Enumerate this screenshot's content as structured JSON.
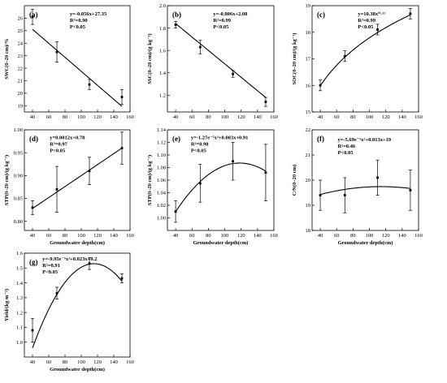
{
  "chart_data": [
    {
      "type": "line",
      "panel": "(a)",
      "x": [
        40,
        70,
        110,
        150
      ],
      "y": [
        26.1,
        23.3,
        20.7,
        19.7
      ],
      "err": [
        0.6,
        0.8,
        0.4,
        0.6
      ],
      "fit": {
        "kind": "poly",
        "coef": [
          27.35,
          -0.056,
          0
        ],
        "label": "y=-0.056x+27.35"
      },
      "stats": [
        "R²=0.90",
        "P<0.05"
      ],
      "xlabel": "",
      "ylabel": "SWC(0–20 cm)/%",
      "xlim": [
        30,
        160
      ],
      "ylim": [
        18.5,
        27
      ],
      "xticks": [
        40,
        60,
        80,
        100,
        120,
        140,
        160
      ],
      "yticks": [
        19,
        20,
        21,
        22,
        23,
        24,
        25,
        26
      ],
      "ydec": 0
    },
    {
      "type": "line",
      "panel": "(b)",
      "x": [
        40,
        70,
        110,
        150
      ],
      "y": [
        1.83,
        1.63,
        1.39,
        1.14
      ],
      "err": [
        0.03,
        0.06,
        0.03,
        0.04
      ],
      "fit": {
        "kind": "poly",
        "coef": [
          2.08,
          -0.006,
          0
        ],
        "label": "y=-0.006x+2.08"
      },
      "stats": [
        "R²=0.99",
        "P<0.05"
      ],
      "xlabel": "",
      "ylabel": "SSC(0–20 cm)/(g kg⁻¹)",
      "xlim": [
        30,
        160
      ],
      "ylim": [
        1.05,
        2.0
      ],
      "xticks": [
        40,
        60,
        80,
        100,
        120,
        140,
        160
      ],
      "yticks": [
        1.2,
        1.4,
        1.6,
        1.8,
        2.0
      ],
      "ydec": 1
    },
    {
      "type": "line",
      "panel": "(c)",
      "x": [
        40,
        70,
        110,
        150
      ],
      "y": [
        16.0,
        17.1,
        18.1,
        18.7
      ],
      "err": [
        0.2,
        0.2,
        0.2,
        0.2
      ],
      "fit": {
        "kind": "power",
        "a": 10.38,
        "b": 0.117,
        "label": "y=10.38x⁰·¹¹"
      },
      "stats": [
        "R²=0.99",
        "P<0.05"
      ],
      "xlabel": "",
      "ylabel": "SOC(0–20 cm)/(g kg⁻¹)",
      "xlim": [
        30,
        160
      ],
      "ylim": [
        15,
        19
      ],
      "xticks": [
        40,
        60,
        80,
        100,
        120,
        140,
        160
      ],
      "yticks": [
        15,
        16,
        17,
        18,
        19
      ],
      "ydec": 0
    },
    {
      "type": "line",
      "panel": "(d)",
      "x": [
        40,
        70,
        110,
        150
      ],
      "y": [
        0.83,
        0.87,
        0.91,
        0.96
      ],
      "err": [
        0.015,
        0.05,
        0.03,
        0.035
      ],
      "fit": {
        "kind": "poly",
        "coef": [
          0.78,
          0.0012,
          0
        ],
        "label": "y=0.0012x+0.78"
      },
      "stats": [
        "R²=0.97",
        "P<0.05"
      ],
      "xlabel": "Groundwater depth(cm)",
      "ylabel": "STP(0–20 cm)/(g kg⁻¹)",
      "xlim": [
        30,
        160
      ],
      "ylim": [
        0.78,
        1.0
      ],
      "xticks": [
        40,
        60,
        80,
        100,
        120,
        140,
        160
      ],
      "yticks": [
        0.8,
        0.85,
        0.9,
        0.95,
        1.0
      ],
      "ydec": 2
    },
    {
      "type": "line",
      "panel": "(e)",
      "x": [
        40,
        70,
        110,
        150
      ],
      "y": [
        1.01,
        1.055,
        1.09,
        1.072
      ],
      "err": [
        0.017,
        0.03,
        0.03,
        0.045
      ],
      "fit": {
        "kind": "poly",
        "coef": [
          0.91,
          0.003,
          -1.27e-05
        ],
        "label": "y=-1.27e⁻⁵x²+0.003x+0.91"
      },
      "stats": [
        "R²=0.98",
        "P<0.05"
      ],
      "xlabel": "Groundwater depth(cm)",
      "ylabel": "STP(0–20 cm)/(g kg⁻¹)",
      "xlim": [
        30,
        160
      ],
      "ylim": [
        0.98,
        1.14
      ],
      "xticks": [
        40,
        60,
        80,
        100,
        120,
        140,
        160
      ],
      "yticks": [
        1.0,
        1.02,
        1.04,
        1.06,
        1.08,
        1.1,
        1.12,
        1.14
      ],
      "ydec": 2
    },
    {
      "type": "line",
      "panel": "(f)",
      "x": [
        40,
        70,
        110,
        150
      ],
      "y": [
        19.4,
        19.4,
        20.1,
        19.6
      ],
      "err": [
        0.6,
        0.7,
        0.7,
        0.8
      ],
      "fit": {
        "kind": "poly",
        "coef": [
          19.0,
          0.013,
          -5.69e-05
        ],
        "label": "y=-5.69e⁻⁵x²+0.013x+19"
      },
      "stats": [
        "R²=0.46",
        "P<0.05"
      ],
      "xlabel": "Groundwater depth(cm)",
      "ylabel": "C/N(0–20 cm)",
      "xlim": [
        30,
        160
      ],
      "ylim": [
        18,
        22
      ],
      "xticks": [
        40,
        60,
        80,
        100,
        120,
        140,
        160
      ],
      "yticks": [
        18,
        19,
        20,
        21,
        22
      ],
      "ydec": 0
    },
    {
      "type": "line",
      "panel": "(g)",
      "x": [
        40,
        70,
        110,
        150
      ],
      "y": [
        1.08,
        1.33,
        1.53,
        1.43
      ],
      "err": [
        0.08,
        0.04,
        0.04,
        0.03
      ],
      "fit": {
        "kind": "poly",
        "coef": [
          0.2,
          0.023,
          -9.95e-05
        ],
        "label": "y=-9.95e⁻⁵x²+0.023x+0.2"
      },
      "stats": [
        "R²=0.91",
        "P<0.05"
      ],
      "xlabel": "Groundwater depth(cm)",
      "ylabel": "Yield/(kg m⁻²)",
      "xlim": [
        30,
        160
      ],
      "ylim": [
        0.9,
        1.6
      ],
      "xticks": [
        40,
        60,
        80,
        100,
        120,
        140,
        160
      ],
      "yticks": [
        1.0,
        1.1,
        1.2,
        1.3,
        1.4,
        1.5,
        1.6
      ],
      "ydec": 1
    }
  ]
}
